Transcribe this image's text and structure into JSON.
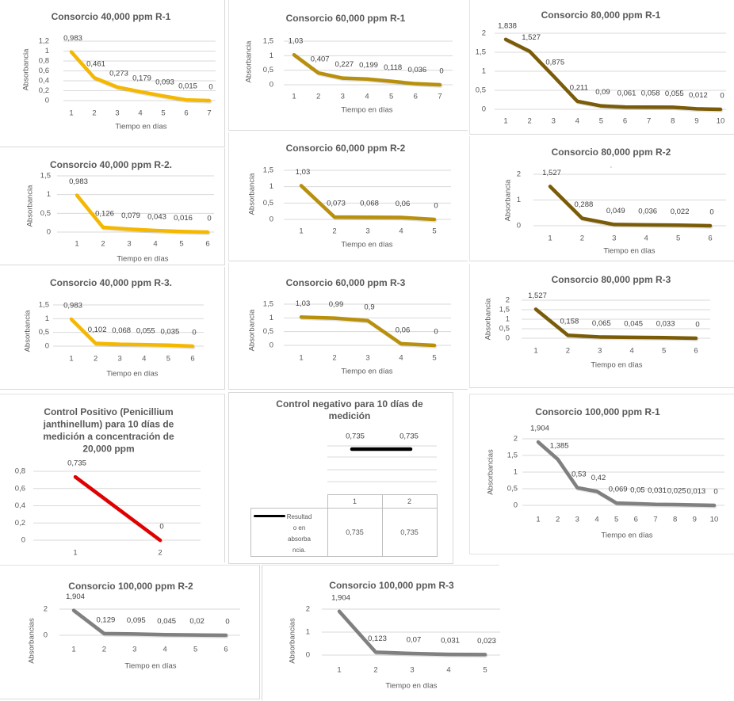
{
  "chart_data": [
    {
      "id": "consorcio-40000-r1",
      "type": "line",
      "title": [
        "Consorcio 40,000 ppm R-1"
      ],
      "xlabel": "Tiempo en días",
      "ylabel": "Absorbancia",
      "categories": [
        "1",
        "2",
        "3",
        "4",
        "5",
        "6",
        "7"
      ],
      "values": [
        0.983,
        0.461,
        0.273,
        0.179,
        0.093,
        0.015,
        0
      ],
      "data_labels": [
        "0,983",
        "0,461",
        "0,273",
        "0,179",
        "0,093",
        "0,015",
        "0"
      ],
      "ylim": [
        0,
        1.2
      ],
      "yticks": [
        0,
        0.2,
        0.4,
        0.6,
        0.8,
        1,
        1.2
      ],
      "ytick_labels": [
        "0",
        "0,2",
        "0,4",
        "0,6",
        "0,8",
        "1",
        "1,2"
      ],
      "grid": true,
      "legend": "none",
      "color": "#f5b800"
    },
    {
      "id": "consorcio-60000-r1",
      "type": "line",
      "title": [
        "Consorcio 60,000 ppm R-1"
      ],
      "xlabel": "Tiempo en días",
      "ylabel": "Absorbancia",
      "categories": [
        "1",
        "2",
        "3",
        "4",
        "5",
        "6",
        "7"
      ],
      "values": [
        1.03,
        0.407,
        0.227,
        0.199,
        0.118,
        0.036,
        0
      ],
      "data_labels": [
        "1,03",
        "0,407",
        "0,227",
        "0,199",
        "0,118",
        "0,036",
        "0"
      ],
      "ylim": [
        0,
        1.5
      ],
      "yticks": [
        0,
        0.5,
        1,
        1.5
      ],
      "ytick_labels": [
        "0",
        "0,5",
        "1",
        "1,5"
      ],
      "grid": true,
      "legend": "none",
      "color": "#b8900c"
    },
    {
      "id": "consorcio-80000-r1",
      "type": "line",
      "title": [
        "Consorcio 80,000 ppm R-1"
      ],
      "xlabel": "",
      "ylabel": "",
      "categories": [
        "1",
        "2",
        "3",
        "4",
        "5",
        "6",
        "7",
        "8",
        "9",
        "10"
      ],
      "values": [
        1.838,
        1.527,
        0.875,
        0.211,
        0.09,
        0.061,
        0.058,
        0.055,
        0.012,
        0
      ],
      "data_labels": [
        "1,838",
        "1,527",
        "0,875",
        "0,211",
        "0,09",
        "0,061",
        "0,058",
        "0,055",
        "0,012",
        "0"
      ],
      "ylim": [
        0,
        2
      ],
      "yticks": [
        0,
        0.5,
        1,
        1.5,
        2
      ],
      "ytick_labels": [
        "0",
        "0,5",
        "1",
        "1,5",
        "2"
      ],
      "grid": true,
      "legend": "none",
      "color": "#7a5c08"
    },
    {
      "id": "consorcio-40000-r2",
      "type": "line",
      "title": [
        "Consorcio 40,000 ppm R-2."
      ],
      "xlabel": "Tiempo en días",
      "ylabel": "Absorbancia",
      "categories": [
        "1",
        "2",
        "3",
        "4",
        "5",
        "6"
      ],
      "values": [
        0.983,
        0.126,
        0.079,
        0.043,
        0.016,
        0
      ],
      "data_labels": [
        "0,983",
        "0,126",
        "0,079",
        "0,043",
        "0,016",
        "0"
      ],
      "ylim": [
        0,
        1.5
      ],
      "yticks": [
        0,
        0.5,
        1,
        1.5
      ],
      "ytick_labels": [
        "0",
        "0,5",
        "1",
        "1,5"
      ],
      "grid": true,
      "legend": "none",
      "color": "#f5b800"
    },
    {
      "id": "consorcio-60000-r2",
      "type": "line",
      "title": [
        "Consorcio 60,000 ppm R-2"
      ],
      "xlabel": "Tiempo en días",
      "ylabel": "Absorbancia",
      "categories": [
        "1",
        "2",
        "3",
        "4",
        "5"
      ],
      "values": [
        1.03,
        0.073,
        0.068,
        0.06,
        0
      ],
      "data_labels": [
        "1,03",
        "0,073",
        "0,068",
        "0,06",
        "0"
      ],
      "ylim": [
        0,
        1.5
      ],
      "yticks": [
        0,
        0.5,
        1,
        1.5
      ],
      "ytick_labels": [
        "0",
        "0,5",
        "1",
        "1,5"
      ],
      "grid": true,
      "legend": "none",
      "color": "#b8900c"
    },
    {
      "id": "consorcio-80000-r2",
      "type": "line",
      "title": [
        "Consorcio 80,000 ppm R-2"
      ],
      "subtitle": ".",
      "xlabel": "Tiempo en días",
      "ylabel": "Absorbancia",
      "categories": [
        "1",
        "2",
        "3",
        "4",
        "5",
        "6"
      ],
      "values": [
        1.527,
        0.288,
        0.049,
        0.036,
        0.022,
        0
      ],
      "data_labels": [
        "1,527",
        "0,288",
        "0,049",
        "0,036",
        "0,022",
        "0"
      ],
      "ylim": [
        0,
        2
      ],
      "yticks": [
        0,
        1,
        2
      ],
      "ytick_labels": [
        "0",
        "1",
        "2"
      ],
      "grid": true,
      "legend": "none",
      "color": "#7a5c08"
    },
    {
      "id": "consorcio-40000-r3",
      "type": "line",
      "title": [
        "Consorcio 40,000 ppm R-3."
      ],
      "xlabel": "Tiempo en días",
      "ylabel": "Absorbancia",
      "categories": [
        "1",
        "2",
        "3",
        "4",
        "5",
        "6"
      ],
      "values": [
        0.983,
        0.102,
        0.068,
        0.055,
        0.035,
        0
      ],
      "data_labels": [
        "0,983",
        "0,102",
        "0,068",
        "0,055",
        "0,035",
        "0"
      ],
      "ylim": [
        0,
        1.5
      ],
      "yticks": [
        0,
        0.5,
        1,
        1.5
      ],
      "ytick_labels": [
        "0",
        "0,5",
        "1",
        "1,5"
      ],
      "grid": true,
      "legend": "none",
      "color": "#f5b800"
    },
    {
      "id": "consorcio-60000-r3",
      "type": "line",
      "title": [
        "Consorcio 60,000 ppm R-3"
      ],
      "xlabel": "Tiempo en días",
      "ylabel": "Absorbancia",
      "categories": [
        "1",
        "2",
        "3",
        "4",
        "5"
      ],
      "values": [
        1.03,
        0.99,
        0.9,
        0.06,
        0
      ],
      "data_labels": [
        "1,03",
        "0,99",
        "0,9",
        "0,06",
        "0"
      ],
      "ylim": [
        0,
        1.5
      ],
      "yticks": [
        0,
        0.5,
        1,
        1.5
      ],
      "ytick_labels": [
        "0",
        "0,5",
        "1",
        "1,5"
      ],
      "grid": true,
      "legend": "none",
      "color": "#b8900c"
    },
    {
      "id": "consorcio-80000-r3",
      "type": "line",
      "title": [
        "Consorcio 80,000 ppm R-3"
      ],
      "xlabel": "Tiempo en días",
      "ylabel": "Absorbancia",
      "categories": [
        "1",
        "2",
        "3",
        "4",
        "5",
        "6"
      ],
      "values": [
        1.527,
        0.158,
        0.065,
        0.045,
        0.033,
        0
      ],
      "data_labels": [
        "1,527",
        "0,158",
        "0,065",
        "0,045",
        "0,033",
        "0"
      ],
      "ylim": [
        0,
        2
      ],
      "yticks": [
        0,
        0.5,
        1,
        1.5,
        2
      ],
      "ytick_labels": [
        "0",
        "0,5",
        "1",
        "1,5",
        "2"
      ],
      "grid": true,
      "legend": "none",
      "color": "#7a5c08"
    },
    {
      "id": "control-positivo",
      "type": "line",
      "title": [
        "Control Positivo (Penicillium",
        "janthinellum) para 10 días de",
        "medición a concentración de",
        "20,000 ppm"
      ],
      "xlabel": "",
      "ylabel": "",
      "categories": [
        "1",
        "2"
      ],
      "values": [
        0.735,
        0
      ],
      "data_labels": [
        "0,735",
        "0"
      ],
      "ylim": [
        0,
        0.8
      ],
      "yticks": [
        0,
        0.2,
        0.4,
        0.6,
        0.8
      ],
      "ytick_labels": [
        "0",
        "0,2",
        "0,4",
        "0,6",
        "0,8"
      ],
      "grid": true,
      "legend": "none",
      "color": "#e00000"
    },
    {
      "id": "control-negativo",
      "type": "line",
      "title": [
        "Control negativo para 10 días de",
        "medición"
      ],
      "xlabel": "",
      "ylabel": "",
      "categories": [
        "1",
        "2"
      ],
      "values": [
        0.735,
        0.735
      ],
      "data_labels": [
        "0,735",
        "0,735"
      ],
      "grid": true,
      "legend": "data-table",
      "color": "#000000",
      "data_table": {
        "header": [
          "1",
          "2"
        ],
        "rows": [
          {
            "series": "Resultado en absorbancia.",
            "values": [
              "0,735",
              "0,735"
            ]
          }
        ]
      }
    },
    {
      "id": "consorcio-100000-r1",
      "type": "line",
      "title": [
        "Consorcio 100,000 ppm R-1"
      ],
      "xlabel": "Tiempo en días",
      "ylabel": "Absorbancias",
      "categories": [
        "1",
        "2",
        "3",
        "4",
        "5",
        "6",
        "7",
        "8",
        "9",
        "10"
      ],
      "values": [
        1.904,
        1.385,
        0.53,
        0.42,
        0.069,
        0.05,
        0.031,
        0.025,
        0.013,
        0
      ],
      "data_labels": [
        "1,904",
        "1,385",
        "0,53",
        "0,42",
        "0,069",
        "0,05",
        "0,031",
        "0,025",
        "0,013",
        "0"
      ],
      "ylim": [
        0,
        2
      ],
      "yticks": [
        0,
        0.5,
        1,
        1.5,
        2
      ],
      "ytick_labels": [
        "0",
        "0,5",
        "1",
        "1,5",
        "2"
      ],
      "grid": true,
      "legend": "none",
      "color": "#808080"
    },
    {
      "id": "consorcio-100000-r2",
      "type": "line",
      "title": [
        "Consorcio 100,000 ppm R-2"
      ],
      "xlabel": "Tiempo en días",
      "ylabel": "Absorbancias",
      "categories": [
        "1",
        "2",
        "3",
        "4",
        "5",
        "6"
      ],
      "values": [
        1.904,
        0.129,
        0.095,
        0.045,
        0.02,
        0
      ],
      "data_labels": [
        "1,904",
        "0,129",
        "0,095",
        "0,045",
        "0,02",
        "0"
      ],
      "ylim": [
        0,
        2
      ],
      "yticks": [
        0,
        2
      ],
      "ytick_labels": [
        "0",
        "2"
      ],
      "grid": true,
      "legend": "none",
      "color": "#808080"
    },
    {
      "id": "consorcio-100000-r3",
      "type": "line",
      "title": [
        "Consorcio 100,000 ppm R-3"
      ],
      "xlabel": "Tiempo en días",
      "ylabel": "Absorbancias",
      "categories": [
        "1",
        "2",
        "3",
        "4",
        "5"
      ],
      "values": [
        1.904,
        0.123,
        0.07,
        0.031,
        0.023
      ],
      "data_labels": [
        "1,904",
        "0,123",
        "0,07",
        "0,031",
        "0,023"
      ],
      "ylim": [
        0,
        2
      ],
      "yticks": [
        0,
        1,
        2
      ],
      "ytick_labels": [
        "0",
        "1",
        "2"
      ],
      "grid": true,
      "legend": "none",
      "color": "#808080"
    }
  ]
}
